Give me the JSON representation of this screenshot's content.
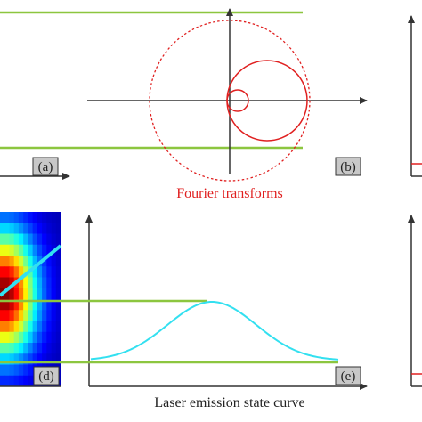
{
  "captions": {
    "fourier": "Fourier transforms",
    "laser": "Laser emission state curve"
  },
  "panel_labels": {
    "a": "(a)",
    "b": "(b)",
    "d": "(d)",
    "e": "(e)"
  },
  "colors": {
    "green_line": "#8cc63f",
    "red_curve": "#e02020",
    "cyan_curve": "#33e0f0",
    "axis": "#333333",
    "label_box": "#c8c8c8"
  },
  "heatmap": {
    "rows": 16,
    "cols": 13,
    "peak_row": 7,
    "peak_col": 0.5
  }
}
